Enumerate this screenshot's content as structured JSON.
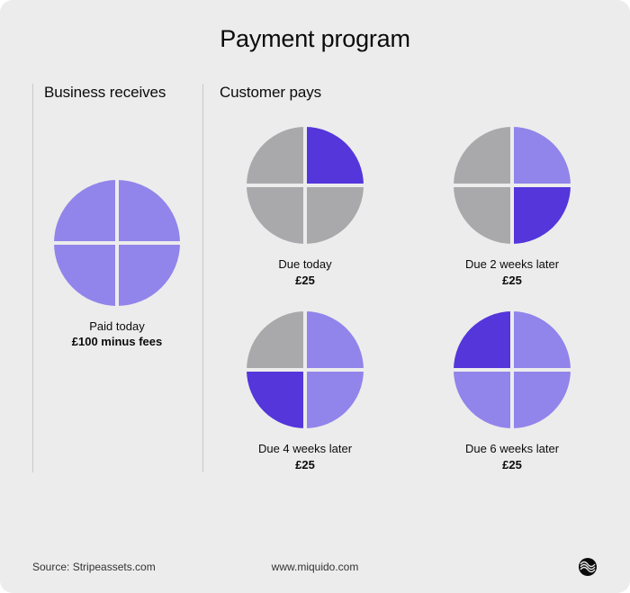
{
  "type": "infographic",
  "background_color": "#ececec",
  "text_color": "#0b0b0b",
  "divider_color": "#c9c9c9",
  "title": "Payment program",
  "title_fontsize": 27,
  "columns": {
    "left_heading": "Business receives",
    "right_heading": "Customer pays"
  },
  "pie_style": {
    "gap_color": "#ececec",
    "gap_width": 4,
    "radius_large": 70,
    "radius_small": 65
  },
  "colors": {
    "light_purple": "#9184ea",
    "dark_purple": "#5436db",
    "gray": "#a9a9ab"
  },
  "business_pie": {
    "caption_line1": "Paid today",
    "caption_line2": "£100 minus fees",
    "quadrants": {
      "top_right": "#9184ea",
      "bottom_right": "#9184ea",
      "bottom_left": "#9184ea",
      "top_left": "#9184ea"
    }
  },
  "customer_pies": [
    {
      "caption_line1": "Due today",
      "caption_line2": "£25",
      "quadrants": {
        "top_right": "#5436db",
        "bottom_right": "#a9a9ab",
        "bottom_left": "#a9a9ab",
        "top_left": "#a9a9ab"
      }
    },
    {
      "caption_line1": "Due 2 weeks later",
      "caption_line2": "£25",
      "quadrants": {
        "top_right": "#9184ea",
        "bottom_right": "#5436db",
        "bottom_left": "#a9a9ab",
        "top_left": "#a9a9ab"
      }
    },
    {
      "caption_line1": "Due 4 weeks later",
      "caption_line2": "£25",
      "quadrants": {
        "top_right": "#9184ea",
        "bottom_right": "#9184ea",
        "bottom_left": "#5436db",
        "top_left": "#a9a9ab"
      }
    },
    {
      "caption_line1": "Due 6 weeks later",
      "caption_line2": "£25",
      "quadrants": {
        "top_right": "#9184ea",
        "bottom_right": "#9184ea",
        "bottom_left": "#9184ea",
        "top_left": "#5436db"
      }
    }
  ],
  "footer": {
    "source": "Source: Stripeassets.com",
    "site": "www.miquido.com"
  }
}
